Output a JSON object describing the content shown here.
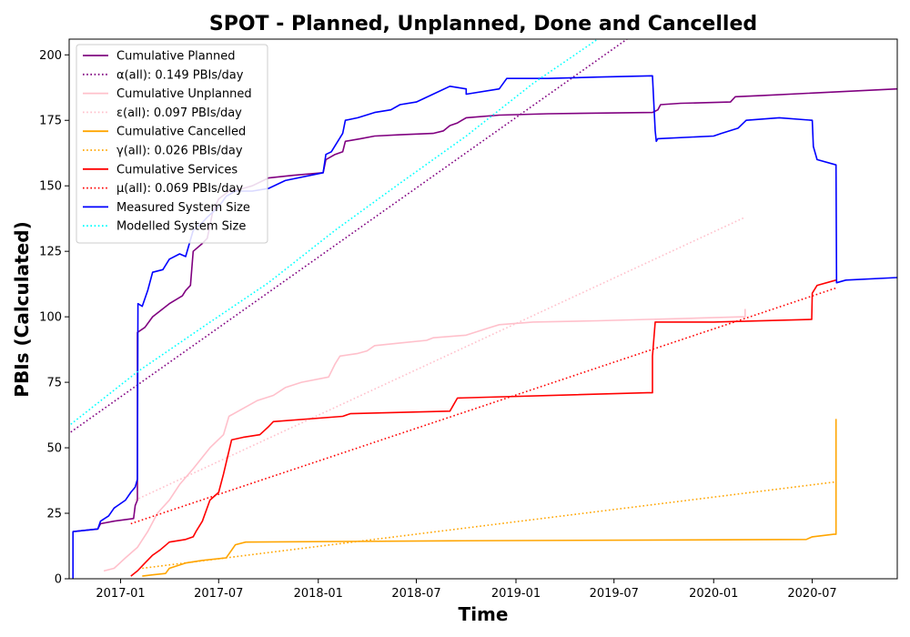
{
  "chart_data": {
    "type": "line",
    "title": "SPOT - Planned, Unplanned, Done  and Cancelled",
    "xlabel": "Time",
    "ylabel": "PBIs (Calculated)",
    "xlim": [
      "2016-09-28",
      "2020-12-05"
    ],
    "ylim": [
      0,
      206
    ],
    "x_ticks": [
      "2017-01",
      "2017-07",
      "2018-01",
      "2018-07",
      "2019-01",
      "2019-07",
      "2020-01",
      "2020-07"
    ],
    "y_ticks": [
      0,
      25,
      50,
      75,
      100,
      125,
      150,
      175,
      200
    ],
    "grid": false,
    "legend_position": "top-left",
    "series": [
      {
        "name": "Cumulative Planned",
        "color": "#800080",
        "style": "solid",
        "points": [
          [
            "2016-10-05",
            18
          ],
          [
            "2016-11-20",
            19
          ],
          [
            "2016-11-25",
            21
          ],
          [
            "2016-12-20",
            22
          ],
          [
            "2017-01-25",
            23
          ],
          [
            "2017-01-28",
            28
          ],
          [
            "2017-02-01",
            30
          ],
          [
            "2017-02-01",
            94
          ],
          [
            "2017-02-15",
            96
          ],
          [
            "2017-03-01",
            100
          ],
          [
            "2017-04-01",
            105
          ],
          [
            "2017-04-25",
            108
          ],
          [
            "2017-05-01",
            110
          ],
          [
            "2017-05-10",
            112
          ],
          [
            "2017-05-15",
            125
          ],
          [
            "2017-06-01",
            128
          ],
          [
            "2017-06-10",
            130
          ],
          [
            "2017-06-20",
            140
          ],
          [
            "2017-07-01",
            145
          ],
          [
            "2017-07-20",
            148
          ],
          [
            "2017-08-15",
            149
          ],
          [
            "2017-09-01",
            150
          ],
          [
            "2017-10-01",
            153
          ],
          [
            "2017-11-15",
            154
          ],
          [
            "2018-01-10",
            155
          ],
          [
            "2018-01-15",
            160
          ],
          [
            "2018-02-01",
            162
          ],
          [
            "2018-02-15",
            163
          ],
          [
            "2018-02-20",
            167
          ],
          [
            "2018-03-20",
            168
          ],
          [
            "2018-04-15",
            169
          ],
          [
            "2018-06-01",
            169.5
          ],
          [
            "2018-08-01",
            170
          ],
          [
            "2018-08-20",
            171
          ],
          [
            "2018-09-01",
            173
          ],
          [
            "2018-09-15",
            174
          ],
          [
            "2018-10-01",
            176
          ],
          [
            "2018-12-01",
            177
          ],
          [
            "2019-03-01",
            177.5
          ],
          [
            "2019-09-10",
            178
          ],
          [
            "2019-09-20",
            179
          ],
          [
            "2019-09-25",
            181
          ],
          [
            "2019-11-01",
            181.5
          ],
          [
            "2020-02-01",
            182
          ],
          [
            "2020-02-10",
            184
          ],
          [
            "2020-04-01",
            184.5
          ],
          [
            "2020-12-05",
            187
          ]
        ]
      },
      {
        "name": "α(all): 0.149 PBIs/day",
        "color": "#800080",
        "style": "dotted",
        "points": [
          [
            "2016-10-01",
            56
          ],
          [
            "2019-07-25",
            206
          ]
        ]
      },
      {
        "name": "Cumulative Unplanned",
        "color": "#ffc0cb",
        "style": "solid",
        "points": [
          [
            "2016-12-01",
            3
          ],
          [
            "2016-12-20",
            4
          ],
          [
            "2017-01-10",
            8
          ],
          [
            "2017-02-01",
            12
          ],
          [
            "2017-02-20",
            18
          ],
          [
            "2017-03-10",
            25
          ],
          [
            "2017-04-01",
            30
          ],
          [
            "2017-04-20",
            36
          ],
          [
            "2017-05-15",
            42
          ],
          [
            "2017-06-15",
            50
          ],
          [
            "2017-07-10",
            55
          ],
          [
            "2017-07-20",
            62
          ],
          [
            "2017-08-15",
            65
          ],
          [
            "2017-09-10",
            68
          ],
          [
            "2017-10-10",
            70
          ],
          [
            "2017-11-01",
            73
          ],
          [
            "2017-12-01",
            75
          ],
          [
            "2018-01-20",
            77
          ],
          [
            "2018-02-01",
            82
          ],
          [
            "2018-02-10",
            85
          ],
          [
            "2018-03-15",
            86
          ],
          [
            "2018-04-01",
            87
          ],
          [
            "2018-04-15",
            89
          ],
          [
            "2018-06-01",
            90
          ],
          [
            "2018-07-20",
            91
          ],
          [
            "2018-08-01",
            92
          ],
          [
            "2018-10-01",
            93
          ],
          [
            "2018-11-15",
            96
          ],
          [
            "2018-12-01",
            97
          ],
          [
            "2019-02-01",
            98
          ],
          [
            "2019-06-01",
            98.5
          ],
          [
            "2019-09-01",
            99
          ],
          [
            "2019-12-01",
            99.5
          ],
          [
            "2020-02-28",
            100
          ],
          [
            "2020-02-28",
            103
          ]
        ]
      },
      {
        "name": "ε(all): 0.097 PBIs/day",
        "color": "#ffc0cb",
        "style": "dotted",
        "points": [
          [
            "2017-01-28",
            30
          ],
          [
            "2020-02-28",
            138
          ]
        ]
      },
      {
        "name": "Cumulative Cancelled",
        "color": "#ffa500",
        "style": "solid",
        "points": [
          [
            "2017-02-10",
            1
          ],
          [
            "2017-03-01",
            1.5
          ],
          [
            "2017-03-25",
            2
          ],
          [
            "2017-04-01",
            4
          ],
          [
            "2017-05-01",
            6
          ],
          [
            "2017-06-01",
            7
          ],
          [
            "2017-07-15",
            8
          ],
          [
            "2017-08-01",
            13
          ],
          [
            "2017-08-20",
            14
          ],
          [
            "2018-09-01",
            14.5
          ],
          [
            "2020-06-20",
            15
          ],
          [
            "2020-07-01",
            16
          ],
          [
            "2020-08-10",
            17
          ],
          [
            "2020-08-14",
            17
          ],
          [
            "2020-08-14",
            61
          ]
        ]
      },
      {
        "name": "γ(all): 0.026 PBIs/day",
        "color": "#ffa500",
        "style": "dotted",
        "points": [
          [
            "2017-02-10",
            4
          ],
          [
            "2020-08-14",
            37
          ]
        ]
      },
      {
        "name": "Cumulative Services",
        "color": "#ff0000",
        "style": "solid",
        "points": [
          [
            "2017-01-20",
            1
          ],
          [
            "2017-02-01",
            3
          ],
          [
            "2017-02-15",
            6
          ],
          [
            "2017-03-01",
            9
          ],
          [
            "2017-03-15",
            11
          ],
          [
            "2017-04-01",
            14
          ],
          [
            "2017-05-01",
            15
          ],
          [
            "2017-05-15",
            16
          ],
          [
            "2017-05-20",
            18
          ],
          [
            "2017-06-01",
            22
          ],
          [
            "2017-06-15",
            30
          ],
          [
            "2017-07-01",
            33
          ],
          [
            "2017-07-10",
            40
          ],
          [
            "2017-07-25",
            53
          ],
          [
            "2017-08-15",
            54
          ],
          [
            "2017-09-15",
            55
          ],
          [
            "2017-10-01",
            58
          ],
          [
            "2017-10-10",
            60
          ],
          [
            "2018-02-15",
            62
          ],
          [
            "2018-03-01",
            63
          ],
          [
            "2018-09-01",
            64
          ],
          [
            "2018-09-15",
            69
          ],
          [
            "2019-09-01",
            71
          ],
          [
            "2019-09-10",
            71
          ],
          [
            "2019-09-10",
            85
          ],
          [
            "2019-09-15",
            98
          ],
          [
            "2020-01-01",
            98
          ],
          [
            "2020-06-30",
            99
          ],
          [
            "2020-07-01",
            109
          ],
          [
            "2020-07-10",
            112
          ],
          [
            "2020-08-14",
            114
          ]
        ]
      },
      {
        "name": "μ(all): 0.069 PBIs/day",
        "color": "#ff0000",
        "style": "dotted",
        "points": [
          [
            "2017-01-20",
            21
          ],
          [
            "2020-08-14",
            111
          ]
        ]
      },
      {
        "name": "Measured System Size",
        "color": "#0000ff",
        "style": "solid",
        "points": [
          [
            "2016-10-05",
            0
          ],
          [
            "2016-10-05",
            18
          ],
          [
            "2016-11-20",
            19
          ],
          [
            "2016-11-25",
            22
          ],
          [
            "2016-12-10",
            24
          ],
          [
            "2016-12-20",
            27
          ],
          [
            "2017-01-10",
            30
          ],
          [
            "2017-01-20",
            33
          ],
          [
            "2017-01-28",
            35
          ],
          [
            "2017-02-01",
            38
          ],
          [
            "2017-02-02",
            105
          ],
          [
            "2017-02-10",
            104
          ],
          [
            "2017-02-20",
            110
          ],
          [
            "2017-03-01",
            117
          ],
          [
            "2017-03-20",
            118
          ],
          [
            "2017-04-01",
            122
          ],
          [
            "2017-04-20",
            124
          ],
          [
            "2017-05-01",
            123
          ],
          [
            "2017-05-15",
            133
          ],
          [
            "2017-06-01",
            136
          ],
          [
            "2017-06-10",
            138
          ],
          [
            "2017-07-01",
            142
          ],
          [
            "2017-07-15",
            146
          ],
          [
            "2017-08-01",
            148
          ],
          [
            "2017-09-01",
            148
          ],
          [
            "2017-10-01",
            149
          ],
          [
            "2017-11-01",
            152
          ],
          [
            "2018-01-10",
            155
          ],
          [
            "2018-01-15",
            162
          ],
          [
            "2018-01-25",
            163
          ],
          [
            "2018-02-15",
            170
          ],
          [
            "2018-02-20",
            175
          ],
          [
            "2018-03-15",
            176
          ],
          [
            "2018-04-15",
            178
          ],
          [
            "2018-05-15",
            179
          ],
          [
            "2018-06-01",
            181
          ],
          [
            "2018-07-01",
            182
          ],
          [
            "2018-08-01",
            185
          ],
          [
            "2018-09-01",
            188
          ],
          [
            "2018-10-01",
            187
          ],
          [
            "2018-10-01",
            185
          ],
          [
            "2018-12-01",
            187
          ],
          [
            "2018-12-15",
            191
          ],
          [
            "2019-03-01",
            191
          ],
          [
            "2019-06-01",
            191.5
          ],
          [
            "2019-09-10",
            192
          ],
          [
            "2019-09-15",
            171
          ],
          [
            "2019-09-17",
            167
          ],
          [
            "2019-09-20",
            168
          ],
          [
            "2020-01-01",
            169
          ],
          [
            "2020-01-15",
            170
          ],
          [
            "2020-02-15",
            172
          ],
          [
            "2020-03-01",
            175
          ],
          [
            "2020-05-01",
            176
          ],
          [
            "2020-07-01",
            175
          ],
          [
            "2020-07-03",
            165
          ],
          [
            "2020-07-10",
            160
          ],
          [
            "2020-08-14",
            158
          ],
          [
            "2020-08-15",
            113
          ],
          [
            "2020-09-01",
            114
          ],
          [
            "2020-12-05",
            115
          ]
        ]
      },
      {
        "name": "Modelled System Size",
        "color": "#00ffff",
        "style": "dotted",
        "points": [
          [
            "2016-10-01",
            59
          ],
          [
            "2017-02-01",
            79
          ],
          [
            "2017-06-01",
            96
          ],
          [
            "2017-10-01",
            113
          ],
          [
            "2018-02-01",
            133
          ],
          [
            "2018-06-01",
            151
          ],
          [
            "2018-10-01",
            169
          ],
          [
            "2019-02-01",
            189
          ],
          [
            "2019-06-01",
            206
          ]
        ]
      }
    ]
  }
}
